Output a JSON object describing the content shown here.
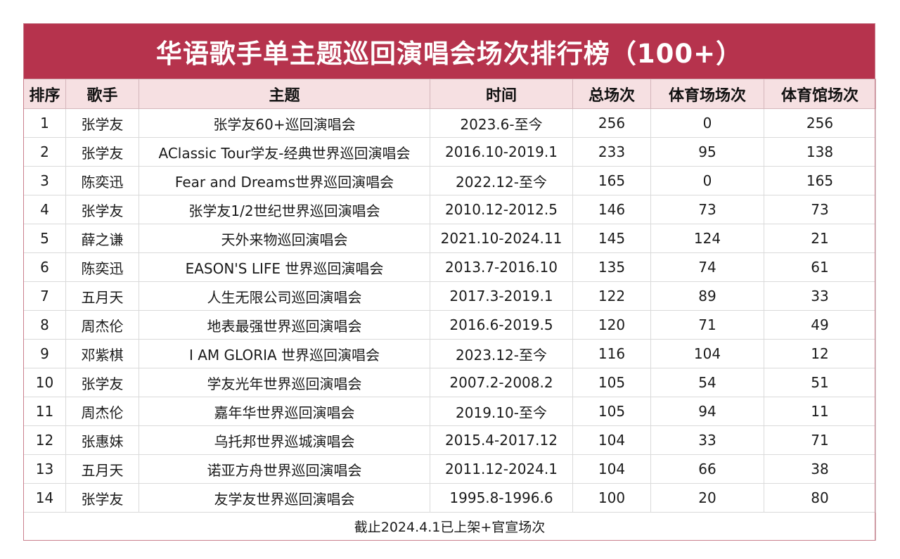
{
  "title": "华语歌手单主题巡回演唱会场次排行榜（100+）",
  "headers": {
    "rank": "排序",
    "singer": "歌手",
    "theme": "主题",
    "time": "时间",
    "total": "总场次",
    "stadium": "体育场场次",
    "arena": "体育馆场次"
  },
  "rows": [
    {
      "rank": "1",
      "singer": "张学友",
      "theme": "张学友60+巡回演唱会",
      "time": "2023.6-至今",
      "total": "256",
      "stadium": "0",
      "arena": "256"
    },
    {
      "rank": "2",
      "singer": "张学友",
      "theme": "AClassic Tour学友-经典世界巡回演唱会",
      "time": "2016.10-2019.1",
      "total": "233",
      "stadium": "95",
      "arena": "138"
    },
    {
      "rank": "3",
      "singer": "陈奕迅",
      "theme": "Fear and Dreams世界巡回演唱会",
      "time": "2022.12-至今",
      "total": "165",
      "stadium": "0",
      "arena": "165"
    },
    {
      "rank": "4",
      "singer": "张学友",
      "theme": "张学友1/2世纪世界巡回演唱会",
      "time": "2010.12-2012.5",
      "total": "146",
      "stadium": "73",
      "arena": "73"
    },
    {
      "rank": "5",
      "singer": "薛之谦",
      "theme": "天外来物巡回演唱会",
      "time": "2021.10-2024.11",
      "total": "145",
      "stadium": "124",
      "arena": "21"
    },
    {
      "rank": "6",
      "singer": "陈奕迅",
      "theme": "EASON'S LIFE 世界巡回演唱会",
      "time": "2013.7-2016.10",
      "total": "135",
      "stadium": "74",
      "arena": "61"
    },
    {
      "rank": "7",
      "singer": "五月天",
      "theme": "人生无限公司巡回演唱会",
      "time": "2017.3-2019.1",
      "total": "122",
      "stadium": "89",
      "arena": "33"
    },
    {
      "rank": "8",
      "singer": "周杰伦",
      "theme": "地表最强世界巡回演唱会",
      "time": "2016.6-2019.5",
      "total": "120",
      "stadium": "71",
      "arena": "49"
    },
    {
      "rank": "9",
      "singer": "邓紫棋",
      "theme": "I AM GLORIA 世界巡回演唱会",
      "time": "2023.12-至今",
      "total": "116",
      "stadium": "104",
      "arena": "12"
    },
    {
      "rank": "10",
      "singer": "张学友",
      "theme": "学友光年世界巡回演唱会",
      "time": "2007.2-2008.2",
      "total": "105",
      "stadium": "54",
      "arena": "51"
    },
    {
      "rank": "11",
      "singer": "周杰伦",
      "theme": "嘉年华世界巡回演唱会",
      "time": "2019.10-至今",
      "total": "105",
      "stadium": "94",
      "arena": "11"
    },
    {
      "rank": "12",
      "singer": "张惠妹",
      "theme": "乌托邦世界巡城演唱会",
      "time": "2015.4-2017.12",
      "total": "104",
      "stadium": "33",
      "arena": "71"
    },
    {
      "rank": "13",
      "singer": "五月天",
      "theme": "诺亚方舟世界巡回演唱会",
      "time": "2011.12-2024.1",
      "total": "104",
      "stadium": "66",
      "arena": "38"
    },
    {
      "rank": "14",
      "singer": "张学友",
      "theme": "友学友世界巡回演唱会",
      "time": "1995.8-1996.6",
      "total": "100",
      "stadium": "20",
      "arena": "80"
    }
  ],
  "footer": "截止2024.4.1已上架+官宣场次",
  "colors": {
    "title_background": "#b6334d",
    "header_background": "#f6e0e2"
  }
}
